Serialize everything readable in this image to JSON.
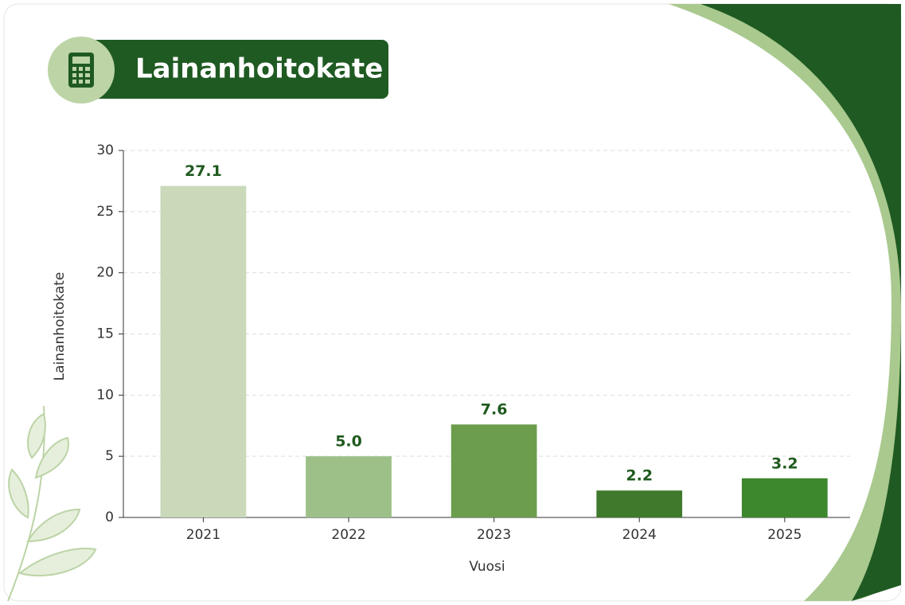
{
  "chart_data": {
    "type": "bar",
    "title": "Lainanhoitokate",
    "x_label": "Vuosi",
    "y_label": "Lainanhoitokate",
    "categories": [
      "2021",
      "2022",
      "2023",
      "2024",
      "2025"
    ],
    "values": [
      27.1,
      5.0,
      7.6,
      2.2,
      3.2
    ],
    "value_labels": [
      "27.1",
      "5.0",
      "7.6",
      "2.2",
      "3.2"
    ],
    "colors": [
      "#c9d9b9",
      "#9cc087",
      "#6c9d4d",
      "#3f7a2c",
      "#3d872c"
    ],
    "ylim": [
      0,
      30
    ],
    "yticks": [
      0,
      5,
      10,
      15,
      20,
      25,
      30
    ],
    "grid": true
  }
}
